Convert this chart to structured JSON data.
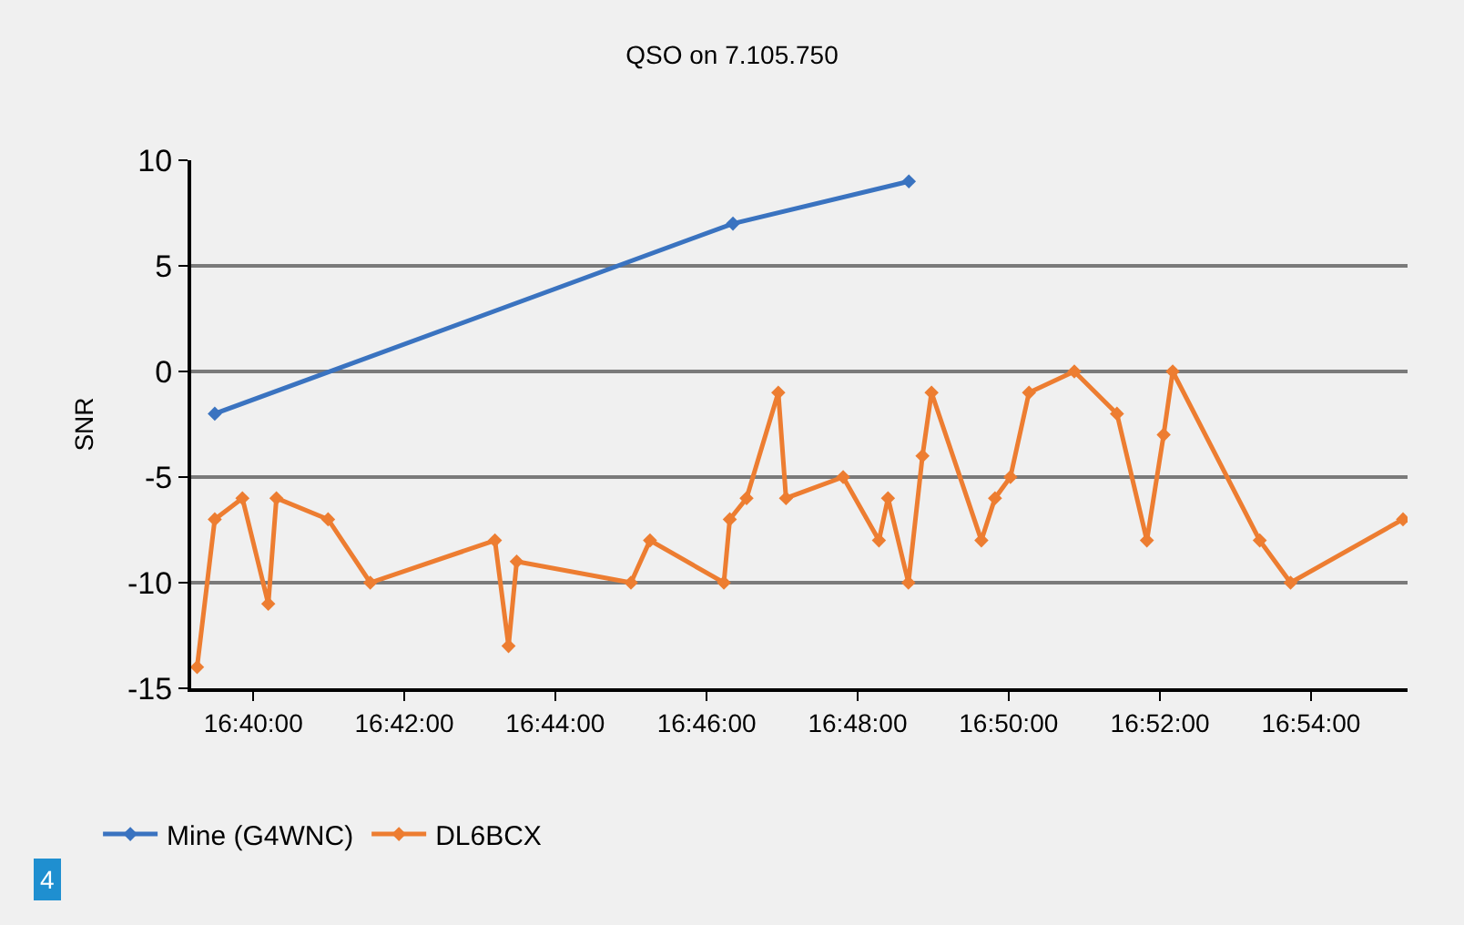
{
  "chart_data": {
    "type": "line",
    "title": "QSO on 7.105.750",
    "ylabel": "SNR",
    "annotations": [
      "4"
    ],
    "xlim": [
      16.653,
      16.9213
    ],
    "xticks": [
      {
        "value": 16.6667,
        "label": "16:40:00"
      },
      {
        "value": 16.7,
        "label": "16:42:00"
      },
      {
        "value": 16.7333,
        "label": "16:44:00"
      },
      {
        "value": 16.7667,
        "label": "16:46:00"
      },
      {
        "value": 16.8,
        "label": "16:48:00"
      },
      {
        "value": 16.8333,
        "label": "16:50:00"
      },
      {
        "value": 16.8667,
        "label": "16:52:00"
      },
      {
        "value": 16.9,
        "label": "16:54:00"
      }
    ],
    "ylim": [
      -15,
      10
    ],
    "yticks": [
      -15,
      -10,
      -5,
      0,
      5,
      10
    ],
    "grid": "y",
    "legend": "bottom left",
    "marker": "diamond",
    "line_style": "solid",
    "series": [
      {
        "name": "Mine (G4WNC)",
        "color": "#3a73c0",
        "x": [
          16.6582,
          16.7725,
          16.8113
        ],
        "values": [
          -2,
          7,
          9
        ]
      },
      {
        "name": "DL6BCX",
        "color": "#ed7d31",
        "x": [
          16.6543,
          16.6582,
          16.6643,
          16.67,
          16.6718,
          16.6832,
          16.6925,
          16.72,
          16.723,
          16.7248,
          16.75,
          16.7542,
          16.7705,
          16.7718,
          16.7755,
          16.7825,
          16.7842,
          16.7968,
          16.8047,
          16.8067,
          16.8112,
          16.8143,
          16.8163,
          16.8273,
          16.8303,
          16.8337,
          16.8378,
          16.8478,
          16.8572,
          16.8638,
          16.8675,
          16.8695,
          16.8887,
          16.8955,
          16.9203
        ],
        "values": [
          -14,
          -7,
          -6,
          -11,
          -6,
          -7,
          -10,
          -8,
          -13,
          -9,
          -10,
          -8,
          -10,
          -7,
          -6,
          -1,
          -6,
          -5,
          -8,
          -6,
          -10,
          -4,
          -1,
          -8,
          -6,
          -5,
          -1,
          0,
          -2,
          -8,
          -3,
          0,
          -8,
          -10,
          -7
        ]
      }
    ]
  }
}
